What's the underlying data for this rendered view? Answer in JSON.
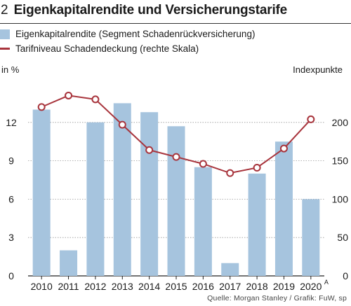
{
  "header": {
    "figure_number": "2",
    "title": "Eigenkapitalrendite und Versicherungstarife"
  },
  "source": "Quelle:  Morgan Stanley / Grafik: FuW, sp",
  "chart_data": {
    "type": "bar+line",
    "categories": [
      "2010",
      "2011",
      "2012",
      "2013",
      "2014",
      "2015",
      "2016",
      "2017",
      "2018",
      "2019",
      "2020"
    ],
    "x_tick_suffix_last": "A",
    "series": [
      {
        "name": "Eigenkapitalrendite (Segment Schadenrückversicherung)",
        "type": "bar",
        "axis": "left",
        "color": "#a6c4de",
        "values": [
          13.0,
          2.0,
          12.0,
          13.5,
          12.8,
          11.7,
          8.5,
          1.0,
          8.0,
          10.5,
          6.0
        ]
      },
      {
        "name": "Tarifniveau Schadendeckung (rechte Skala)",
        "type": "line",
        "axis": "right",
        "color": "#a8343c",
        "values": [
          220,
          235,
          230,
          197,
          164,
          155,
          146,
          134,
          141,
          166,
          204
        ]
      }
    ],
    "left_axis": {
      "label": "in %",
      "min": 0,
      "max": 15,
      "ticks": [
        0,
        3,
        6,
        9,
        12
      ]
    },
    "right_axis": {
      "label": "Indexpunkte",
      "min": 0,
      "max": 250,
      "ticks": [
        0,
        50,
        100,
        150,
        200
      ]
    },
    "grid": "horizontal"
  }
}
